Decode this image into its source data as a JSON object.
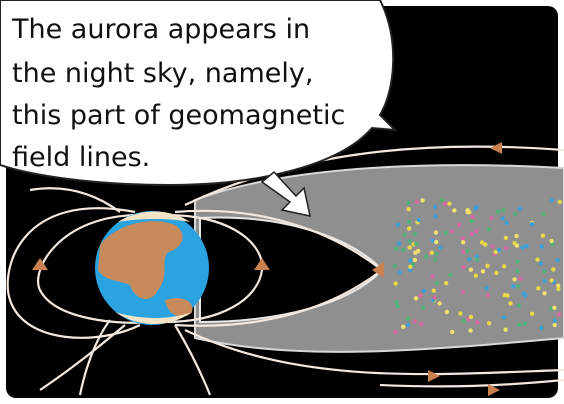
{
  "speech_bubble": {
    "lines": [
      "The aurora appears in",
      "the night sky, namely,",
      "this part of geomagnetic",
      "field lines."
    ]
  }
}
